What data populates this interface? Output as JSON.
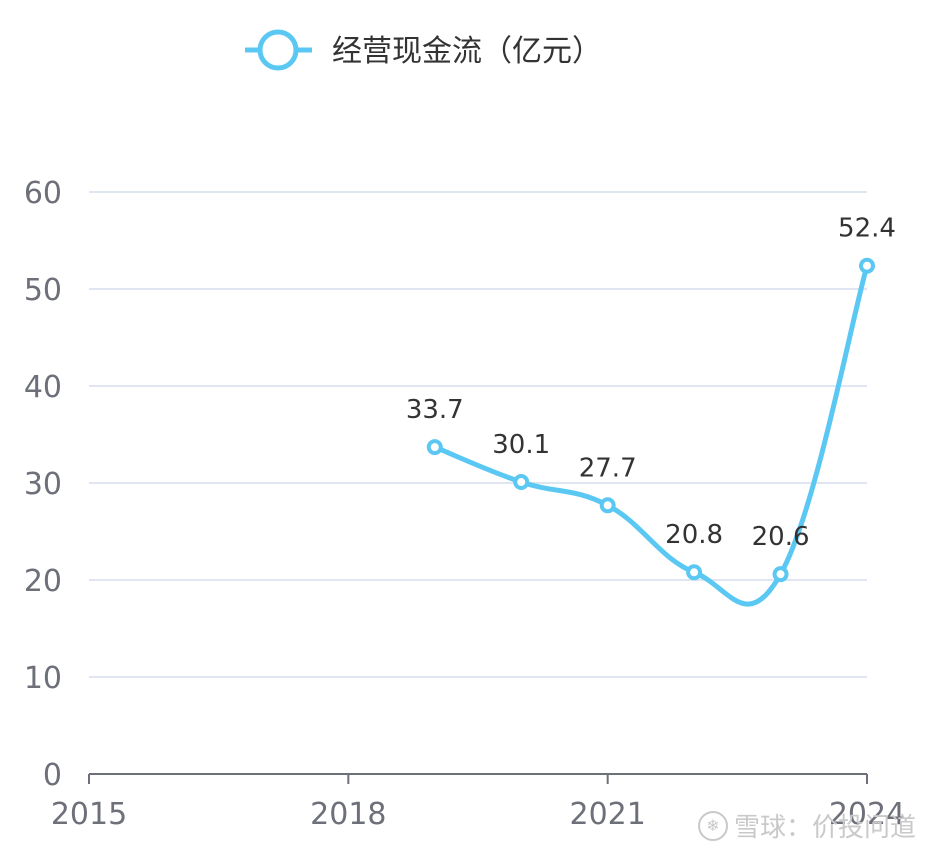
{
  "chart_data": {
    "type": "line",
    "legend": {
      "label": "经营现金流（亿元）",
      "position": "top-center"
    },
    "x_ticks": [
      "2015",
      "2018",
      "2021",
      "2024"
    ],
    "xlim": [
      2015,
      2024
    ],
    "ylim": [
      0,
      60
    ],
    "y_ticks": [
      "0",
      "10",
      "20",
      "30",
      "40",
      "50",
      "60"
    ],
    "grid": true,
    "series": [
      {
        "name": "经营现金流（亿元）",
        "color": "#5ac8f2",
        "smooth": true,
        "x": [
          2019,
          2020,
          2021,
          2022,
          2023,
          2024
        ],
        "values": [
          33.7,
          30.1,
          27.7,
          20.8,
          20.6,
          52.4
        ],
        "labels": [
          "33.7",
          "30.1",
          "27.7",
          "20.8",
          "20.6",
          "52.4"
        ]
      }
    ]
  },
  "watermark": {
    "icon": "snowball-logo-icon",
    "text": "雪球：价投问道"
  }
}
